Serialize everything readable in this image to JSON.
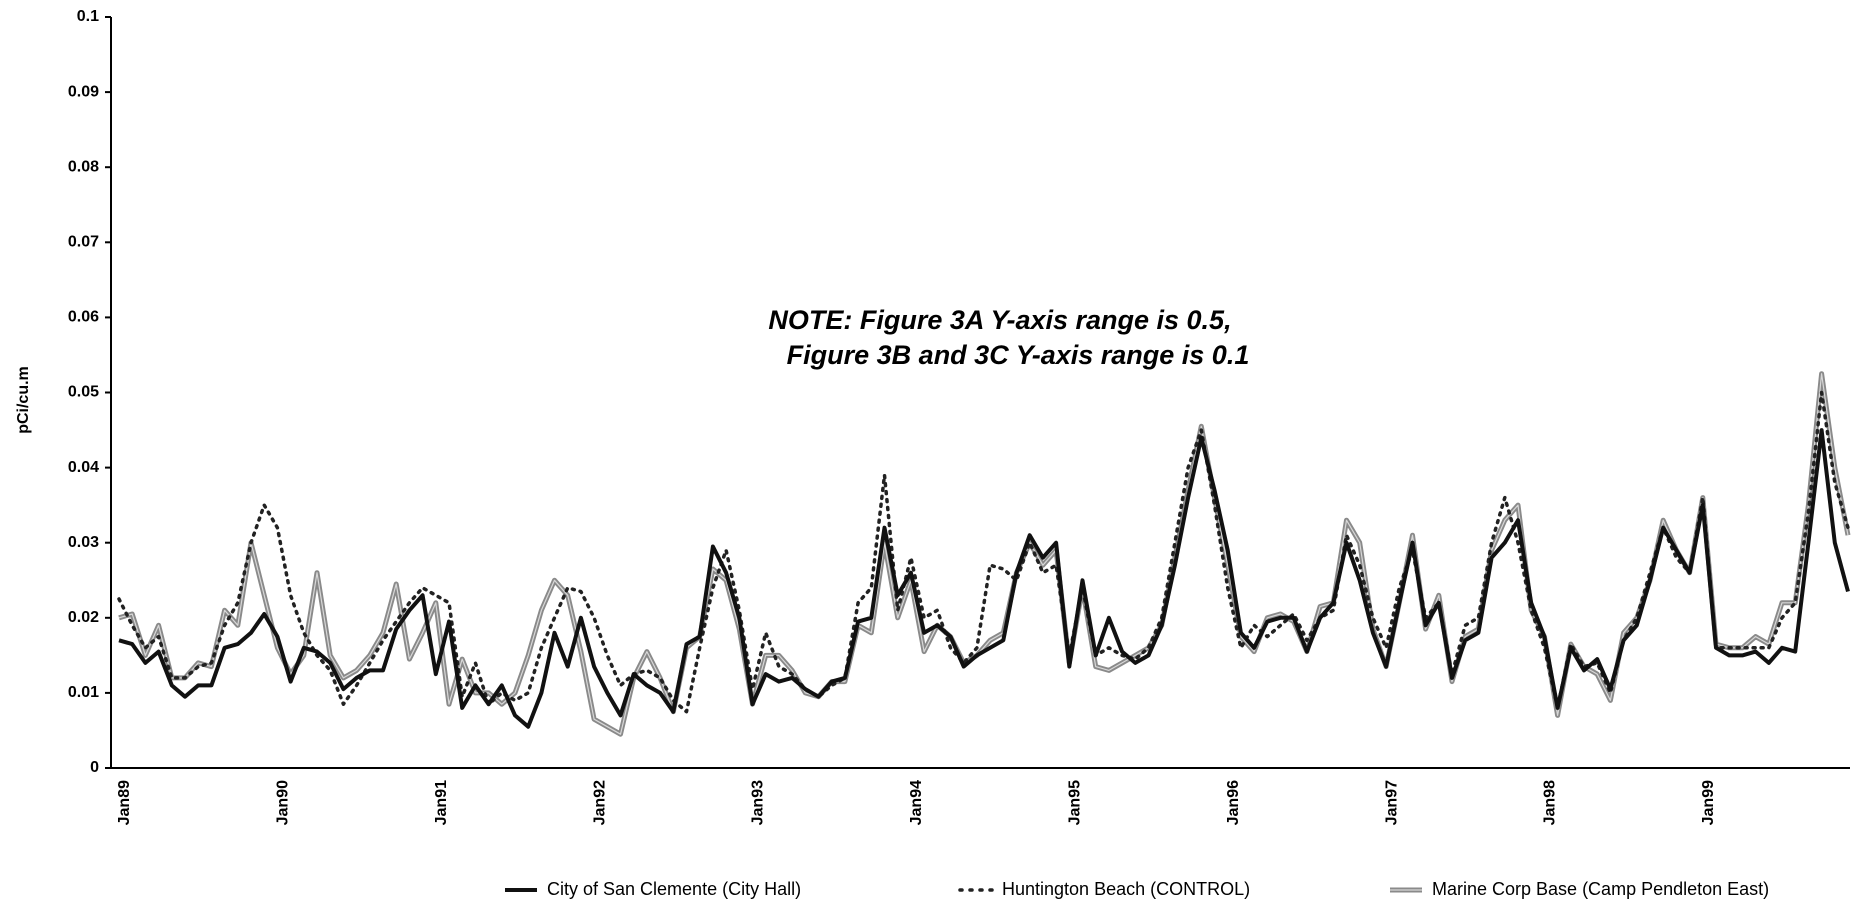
{
  "chart_data": {
    "type": "line",
    "ylabel": "pCi/cu.m",
    "annotation": [
      "NOTE:  Figure 3A Y-axis range is 0.5,",
      "Figure 3B and 3C Y-axis range is 0.1"
    ],
    "ylim": [
      0,
      0.1
    ],
    "yticks": [
      0,
      0.01,
      0.02,
      0.03,
      0.04,
      0.05,
      0.06,
      0.07,
      0.08,
      0.09,
      0.1
    ],
    "categories": [
      "Jan89",
      null,
      null,
      null,
      null,
      null,
      null,
      null,
      null,
      null,
      null,
      null,
      "Jan90",
      null,
      null,
      null,
      null,
      null,
      null,
      null,
      null,
      null,
      null,
      null,
      "Jan91",
      null,
      null,
      null,
      null,
      null,
      null,
      null,
      null,
      null,
      null,
      null,
      "Jan92",
      null,
      null,
      null,
      null,
      null,
      null,
      null,
      null,
      null,
      null,
      null,
      "Jan93",
      null,
      null,
      null,
      null,
      null,
      null,
      null,
      null,
      null,
      null,
      null,
      "Jan94",
      null,
      null,
      null,
      null,
      null,
      null,
      null,
      null,
      null,
      null,
      null,
      "Jan95",
      null,
      null,
      null,
      null,
      null,
      null,
      null,
      null,
      null,
      null,
      null,
      "Jan96",
      null,
      null,
      null,
      null,
      null,
      null,
      null,
      null,
      null,
      null,
      null,
      "Jan97",
      null,
      null,
      null,
      null,
      null,
      null,
      null,
      null,
      null,
      null,
      null,
      "Jan98",
      null,
      null,
      null,
      null,
      null,
      null,
      null,
      null,
      null,
      null,
      null,
      "Jan99",
      null,
      null,
      null,
      null,
      null,
      null,
      null,
      null,
      null,
      null,
      null
    ],
    "series": [
      {
        "name": "City of San Clemente (City Hall)",
        "color": "#111111",
        "style": "solid",
        "values": [
          0.017,
          0.0165,
          0.014,
          0.0155,
          0.011,
          0.0095,
          0.011,
          0.011,
          0.016,
          0.0165,
          0.018,
          0.0205,
          0.0175,
          0.0115,
          0.016,
          0.0155,
          0.014,
          0.0105,
          0.012,
          0.013,
          0.013,
          0.0185,
          0.021,
          0.023,
          0.0125,
          0.0195,
          0.008,
          0.011,
          0.0085,
          0.011,
          0.007,
          0.0055,
          0.01,
          0.018,
          0.0135,
          0.02,
          0.0135,
          0.01,
          0.007,
          0.0125,
          0.011,
          0.01,
          0.0075,
          0.0165,
          0.0175,
          0.0295,
          0.026,
          0.02,
          0.0085,
          0.0125,
          0.0115,
          0.012,
          0.0105,
          0.0095,
          0.0115,
          0.012,
          0.0195,
          0.02,
          0.032,
          0.023,
          0.026,
          0.018,
          0.019,
          0.0175,
          0.0135,
          0.015,
          0.016,
          0.017,
          0.026,
          0.031,
          0.028,
          0.03,
          0.0135,
          0.025,
          0.015,
          0.02,
          0.0155,
          0.014,
          0.015,
          0.019,
          0.027,
          0.036,
          0.044,
          0.037,
          0.029,
          0.018,
          0.016,
          0.0195,
          0.02,
          0.02,
          0.0155,
          0.02,
          0.022,
          0.03,
          0.025,
          0.018,
          0.0135,
          0.022,
          0.03,
          0.019,
          0.022,
          0.012,
          0.017,
          0.018,
          0.028,
          0.03,
          0.033,
          0.022,
          0.0175,
          0.008,
          0.016,
          0.013,
          0.0145,
          0.0105,
          0.017,
          0.019,
          0.025,
          0.032,
          0.029,
          0.026,
          0.035,
          0.016,
          0.015,
          0.015,
          0.0155,
          0.014,
          0.016,
          0.0155,
          0.03,
          0.045,
          0.03,
          0.0235
        ]
      },
      {
        "name": "Huntington Beach  (CONTROL)",
        "color": "#222222",
        "style": "dotted",
        "values": [
          0.0225,
          0.019,
          0.016,
          0.0175,
          0.012,
          0.012,
          0.0135,
          0.014,
          0.019,
          0.022,
          0.03,
          0.035,
          0.032,
          0.023,
          0.018,
          0.015,
          0.013,
          0.0085,
          0.011,
          0.014,
          0.017,
          0.0195,
          0.022,
          0.024,
          0.023,
          0.022,
          0.0095,
          0.014,
          0.0085,
          0.01,
          0.009,
          0.01,
          0.016,
          0.02,
          0.024,
          0.0235,
          0.02,
          0.015,
          0.011,
          0.0125,
          0.013,
          0.012,
          0.009,
          0.0075,
          0.016,
          0.024,
          0.029,
          0.021,
          0.0105,
          0.018,
          0.0135,
          0.0125,
          0.0105,
          0.0095,
          0.011,
          0.012,
          0.022,
          0.024,
          0.039,
          0.021,
          0.028,
          0.02,
          0.021,
          0.016,
          0.014,
          0.016,
          0.027,
          0.0265,
          0.025,
          0.03,
          0.026,
          0.027,
          0.015,
          0.024,
          0.015,
          0.016,
          0.015,
          0.0145,
          0.016,
          0.02,
          0.03,
          0.04,
          0.045,
          0.035,
          0.024,
          0.016,
          0.019,
          0.0175,
          0.019,
          0.0205,
          0.017,
          0.02,
          0.021,
          0.031,
          0.027,
          0.02,
          0.016,
          0.024,
          0.029,
          0.02,
          0.022,
          0.0125,
          0.019,
          0.02,
          0.03,
          0.036,
          0.03,
          0.021,
          0.016,
          0.008,
          0.0165,
          0.0135,
          0.014,
          0.01,
          0.017,
          0.02,
          0.026,
          0.032,
          0.028,
          0.026,
          0.036,
          0.016,
          0.016,
          0.016,
          0.016,
          0.016,
          0.02,
          0.022,
          0.034,
          0.05,
          0.038,
          0.032
        ]
      },
      {
        "name": "Marine Corp Base (Camp Pendleton East)",
        "color": "#8a8a8a",
        "style": "double",
        "values": [
          0.02,
          0.0205,
          0.015,
          0.019,
          0.012,
          0.012,
          0.014,
          0.0135,
          0.021,
          0.019,
          0.03,
          0.023,
          0.016,
          0.0125,
          0.015,
          0.026,
          0.015,
          0.012,
          0.013,
          0.015,
          0.018,
          0.0245,
          0.0145,
          0.018,
          0.022,
          0.0085,
          0.0145,
          0.01,
          0.01,
          0.0085,
          0.01,
          0.015,
          0.021,
          0.025,
          0.023,
          0.0155,
          0.0065,
          0.0055,
          0.0045,
          0.012,
          0.0155,
          0.012,
          0.0075,
          0.016,
          0.0175,
          0.0265,
          0.025,
          0.0185,
          0.0085,
          0.015,
          0.015,
          0.013,
          0.01,
          0.0095,
          0.0115,
          0.0115,
          0.019,
          0.018,
          0.03,
          0.02,
          0.025,
          0.0155,
          0.019,
          0.0175,
          0.014,
          0.015,
          0.017,
          0.018,
          0.026,
          0.03,
          0.027,
          0.029,
          0.014,
          0.024,
          0.0135,
          0.013,
          0.014,
          0.015,
          0.016,
          0.019,
          0.028,
          0.037,
          0.0455,
          0.036,
          0.027,
          0.0175,
          0.0155,
          0.02,
          0.0205,
          0.0195,
          0.0155,
          0.0215,
          0.022,
          0.033,
          0.03,
          0.0185,
          0.0135,
          0.022,
          0.031,
          0.0185,
          0.023,
          0.0115,
          0.0175,
          0.0185,
          0.029,
          0.033,
          0.035,
          0.021,
          0.0175,
          0.007,
          0.0165,
          0.0135,
          0.0125,
          0.009,
          0.018,
          0.02,
          0.025,
          0.033,
          0.029,
          0.026,
          0.036,
          0.0165,
          0.016,
          0.016,
          0.0175,
          0.0165,
          0.022,
          0.022,
          0.035,
          0.0525,
          0.04,
          0.031
        ]
      }
    ]
  }
}
